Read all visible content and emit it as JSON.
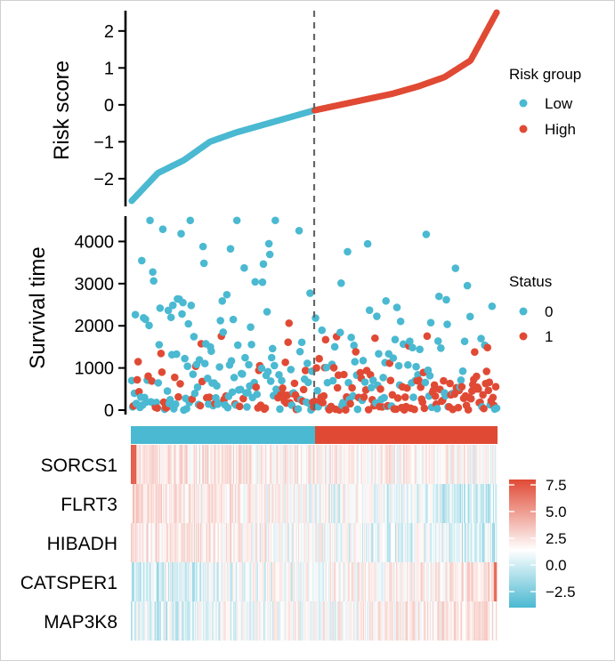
{
  "colors": {
    "low": "#4ab9d1",
    "high": "#e04a35",
    "heat_high": "#e04a35",
    "heat_mid": "#ffffff",
    "heat_low": "#4ab9d1",
    "divider": "#666666",
    "axis": "#000000"
  },
  "chart_data": [
    {
      "type": "scatter",
      "title": "",
      "xlabel": "",
      "ylabel": "Risk score",
      "ylim": [
        -2.75,
        2.55
      ],
      "yticks": [
        2,
        1,
        0,
        -1,
        -2
      ],
      "ytick_labels": [
        "2",
        "1",
        "0",
        "−1",
        "−2"
      ],
      "n_patients": 400,
      "cutoff_index": 200,
      "curve_shape": "sorted risk scores increasing from about -2.6 to 2.5, crossing 0 at the median cutoff",
      "x_range": [
        1,
        400
      ],
      "anchor_values": [
        -2.6,
        -1.85,
        -1.5,
        -1.0,
        -0.75,
        -0.55,
        -0.35,
        -0.15,
        0.0,
        0.15,
        0.3,
        0.5,
        0.75,
        1.2,
        2.5
      ],
      "legend": {
        "title": "Risk group",
        "entries": [
          "Low",
          "High"
        ]
      }
    },
    {
      "type": "scatter",
      "title": "",
      "xlabel": "",
      "ylabel": "Survival time",
      "ylim": [
        0,
        4600
      ],
      "yticks": [
        4000,
        3000,
        2000,
        1000,
        0
      ],
      "ytick_labels": [
        "4000",
        "3000",
        "2000",
        "1000",
        "0"
      ],
      "x_range": [
        1,
        400
      ],
      "description": "Survival time (days) of each patient ordered by risk score; status 1 (dead) becomes more frequent in the high-risk group",
      "n_points": 400,
      "legend": {
        "title": "Status",
        "entries": [
          "0",
          "1"
        ]
      }
    },
    {
      "type": "heatmap",
      "title": "",
      "group_bar": [
        "Low",
        "High"
      ],
      "rows": [
        "SORCS1",
        "FLRT3",
        "HIBADH",
        "CATSPER1",
        "MAP3K8"
      ],
      "n_columns": 400,
      "row_trends": [
        {
          "gene": "SORCS1",
          "low_group_mean": 1.2,
          "high_group_mean": 0.4,
          "note": "strong expression in the first few low-risk patients"
        },
        {
          "gene": "FLRT3",
          "low_group_mean": 1.6,
          "high_group_mean": -1.2
        },
        {
          "gene": "HIBADH",
          "low_group_mean": 1.4,
          "high_group_mean": -1.0
        },
        {
          "gene": "CATSPER1",
          "low_group_mean": -1.0,
          "high_group_mean": 1.4
        },
        {
          "gene": "MAP3K8",
          "low_group_mean": -0.8,
          "high_group_mean": 1.3
        }
      ],
      "color_scale": {
        "range": [
          -4.0,
          8.0
        ],
        "ticks": [
          7.5,
          5.0,
          2.5,
          0.0,
          -2.5
        ],
        "tick_labels": [
          "7.5",
          "5.0",
          "2.5",
          "0.0",
          "−2.5"
        ]
      }
    }
  ]
}
